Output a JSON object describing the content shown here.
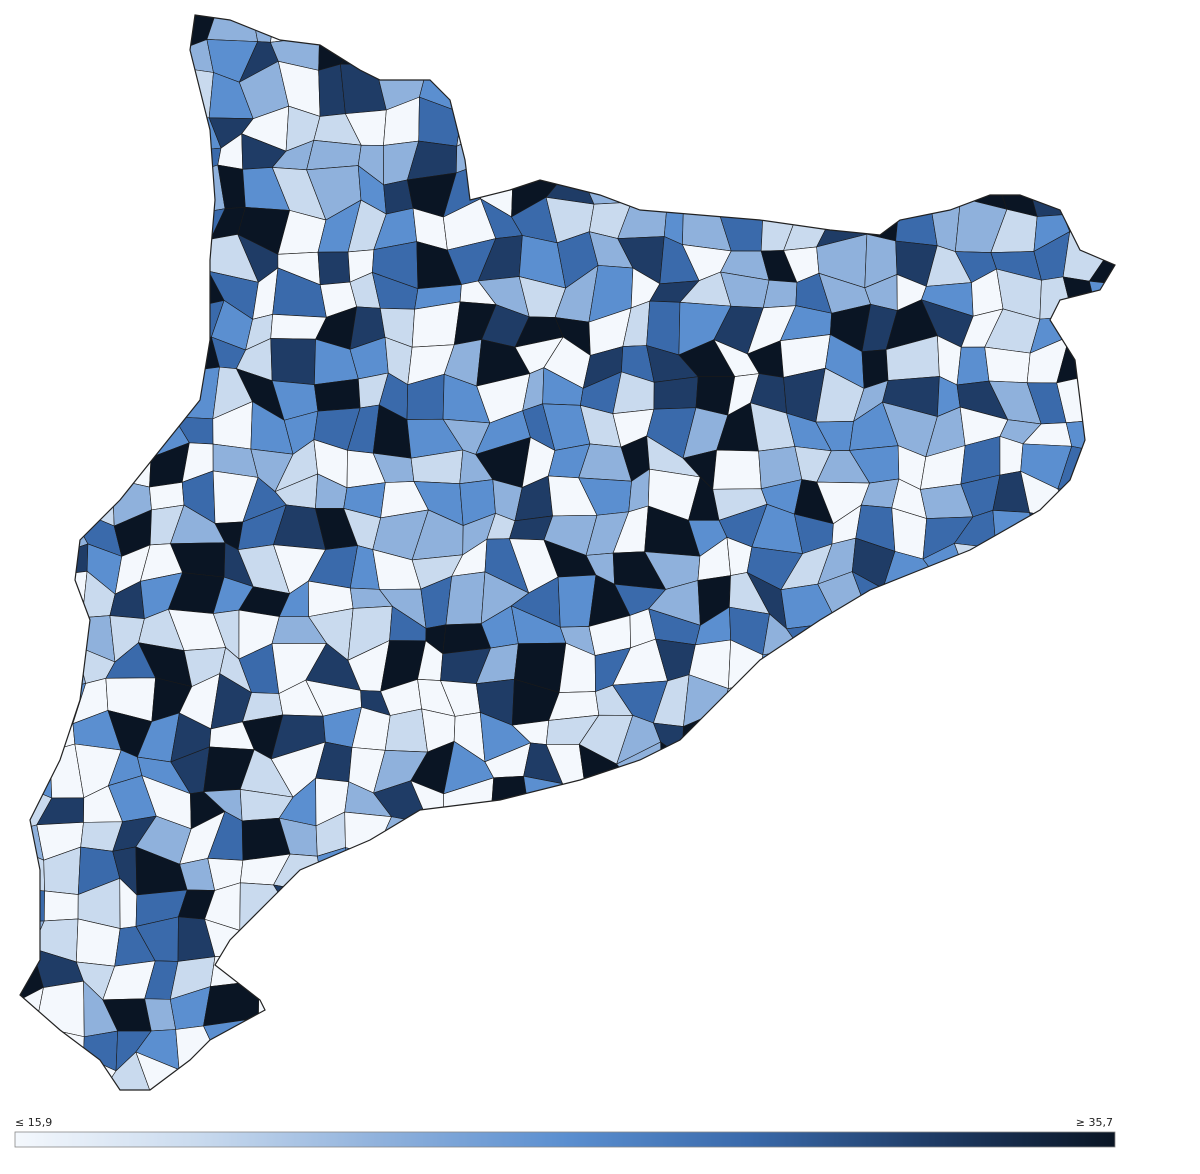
{
  "legend": {
    "min_label": "≤ 15,9",
    "max_label": "≥ 35,7",
    "colors": [
      "#f4f8fd",
      "#c9daee",
      "#8fb1dc",
      "#5b8fd0",
      "#3a6aab",
      "#1f3c66",
      "#0a1524"
    ]
  }
}
